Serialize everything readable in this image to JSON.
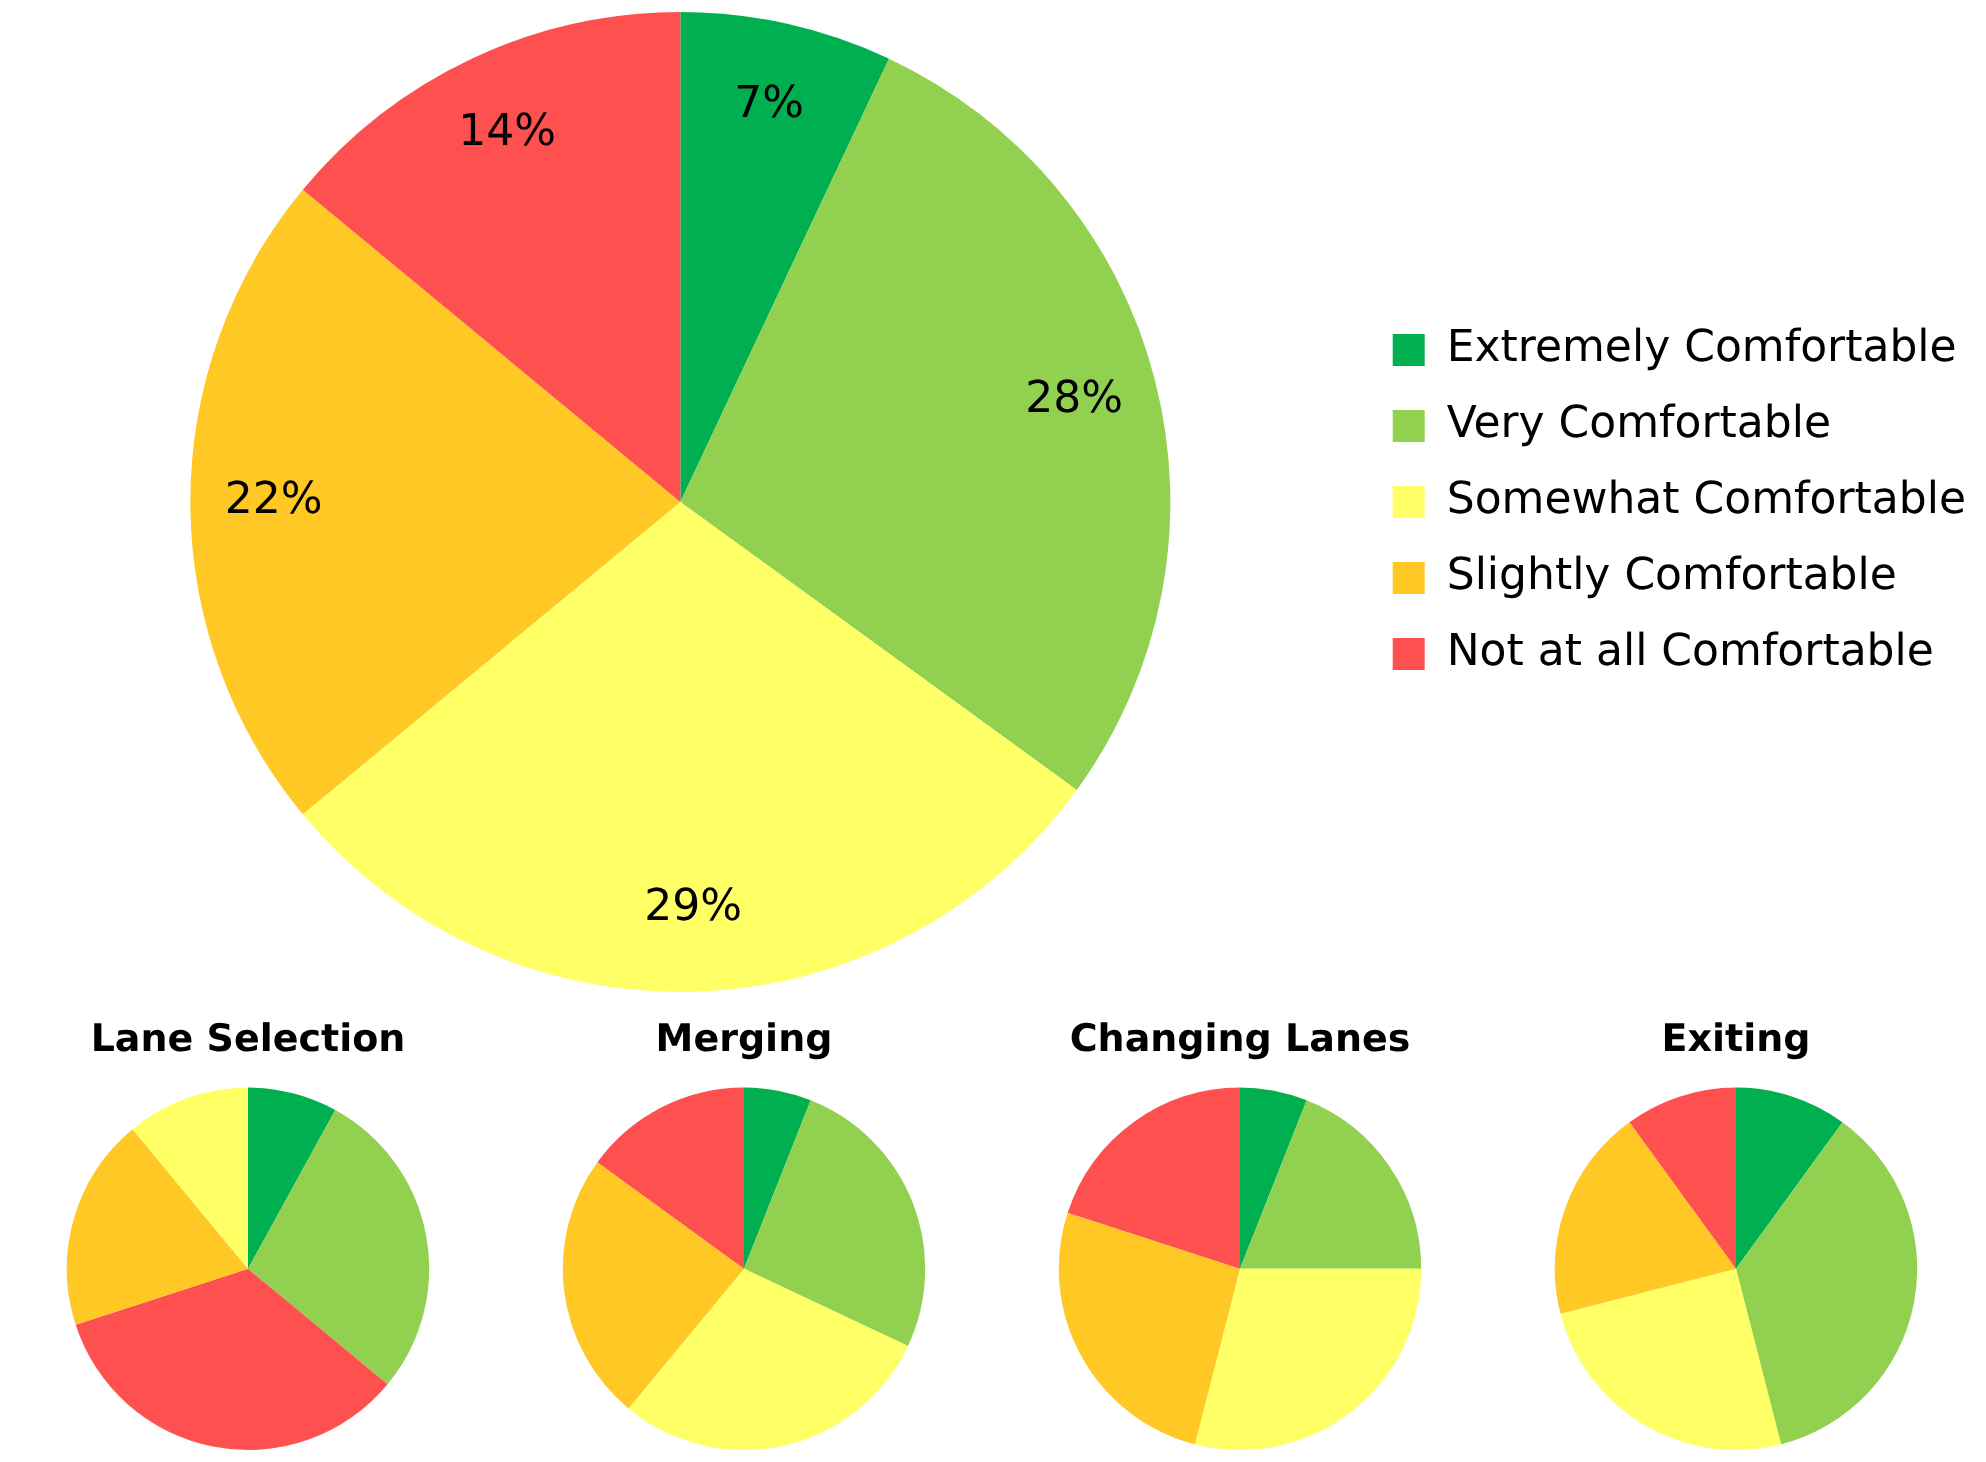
{
  "chart_data": [
    {
      "type": "pie",
      "categories": [
        "Extremely Comfortable",
        "Very Comfortable",
        "Somewhat Comfortable",
        "Slightly Comfortable",
        "Not at all Comfortable"
      ],
      "values": [
        7,
        28,
        29,
        22,
        14
      ],
      "value_labels": [
        "7%",
        "28%",
        "29%",
        "22%",
        "14%"
      ],
      "colors": [
        "#00b050",
        "#92d050",
        "#ffff66",
        "#ffc825",
        "#ff5050"
      ],
      "legend": "right"
    },
    {
      "type": "pie",
      "title": "Lane Selection",
      "categories": [
        null,
        null,
        null,
        null,
        null
      ],
      "values": [
        8,
        28,
        34,
        19,
        11
      ],
      "colors": [
        "#00b050",
        "#92d050",
        "#ff5050",
        "#ffc825",
        "#ffff66"
      ]
    },
    {
      "type": "pie",
      "title": "Merging",
      "categories": [
        null,
        null,
        null,
        null,
        null
      ],
      "values": [
        6,
        26,
        29,
        24,
        15
      ],
      "colors": [
        "#00b050",
        "#92d050",
        "#ffff66",
        "#ffc825",
        "#ff5050"
      ]
    },
    {
      "type": "pie",
      "title": "Changing Lanes",
      "categories": [
        null,
        null,
        null,
        null,
        null
      ],
      "values": [
        6,
        19,
        29,
        26,
        20
      ],
      "colors": [
        "#00b050",
        "#92d050",
        "#ffff66",
        "#ffc825",
        "#ff5050"
      ]
    },
    {
      "type": "pie",
      "title": "Exiting",
      "categories": [
        null,
        null,
        null,
        null,
        null
      ],
      "values": [
        10,
        36,
        25,
        19,
        10
      ],
      "colors": [
        "#00b050",
        "#92d050",
        "#ffff66",
        "#ffc825",
        "#ff5050"
      ]
    }
  ]
}
